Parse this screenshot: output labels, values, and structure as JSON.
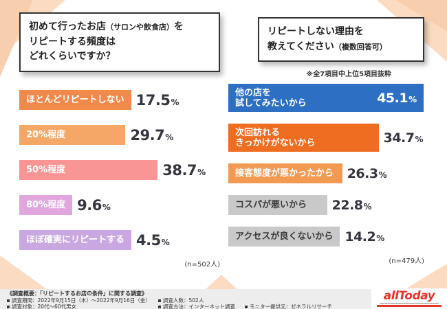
{
  "header_left": {
    "line1_main": "初めて行ったお店",
    "line1_small": "（サロンや飲食店）",
    "line1_tail": "を",
    "line2": "リピートする頻度は",
    "line3": "どれくらいですか？"
  },
  "header_right": {
    "line1": "リピートしない理由を",
    "line2_main": "教えてください",
    "line2_small": "（複数回答可）"
  },
  "chart_data": [
    {
      "type": "bar",
      "orientation": "horizontal",
      "title": "初めて行ったお店（サロンや飲食店）をリピートする頻度はどれくらいですか？",
      "categories": [
        "ほとんどリピートしない",
        "20%程度",
        "50%程度",
        "80%程度",
        "ほぼ確実にリピートする"
      ],
      "values": [
        17.5,
        29.7,
        38.7,
        9.6,
        4.5
      ],
      "unit": "%",
      "bar_colors": [
        "#ef8a4c",
        "#f5a768",
        "#fa9595",
        "#e2a6de",
        "#c9a8e2"
      ],
      "label_colors": [
        "#ffffff",
        "#ffffff",
        "#ffffff",
        "#ffffff",
        "#ffffff"
      ],
      "value_inside": [
        false,
        false,
        false,
        false,
        false
      ],
      "n_label": "(n=502人)"
    },
    {
      "type": "bar",
      "orientation": "horizontal",
      "title": "リピートしない理由を教えてください（複数回答可）",
      "note": "※全7項目中上位5項目抜粋",
      "categories": [
        "他の店を\n試してみたいから",
        "次回訪れる\nきっかけがないから",
        "接客態度が悪かったから",
        "コスパが悪いから",
        "アクセスが良くないから"
      ],
      "values": [
        45.1,
        34.7,
        26.3,
        22.8,
        14.2
      ],
      "unit": "%",
      "bar_colors": [
        "#2d6fc2",
        "#ee6d20",
        "#f29a52",
        "#c9c9c9",
        "#c9c9c9"
      ],
      "label_colors": [
        "#ffffff",
        "#ffffff",
        "#ffffff",
        "#3a3a3a",
        "#3a3a3a"
      ],
      "value_inside": [
        true,
        false,
        false,
        false,
        false
      ],
      "value_inside_color": "#ffffff",
      "n_label": "(n=479人)"
    }
  ],
  "colors": {
    "value_text": "#35353f",
    "accent_peach": "#fbdcc3",
    "logo_red": "#e5352b",
    "footer_bg": "#ededed"
  },
  "footer": {
    "title": "《調査概要：「リピートするお店の条件」に関する調査》",
    "rows": [
      [
        "調査期間：2022年9月15日（木）〜2022年9月16日（金）",
        "調査人数：502人"
      ],
      [
        "調査対象：20代〜60代男女",
        "調査方法：インターネット調査",
        "モニター提供元：ゼネラルリサーチ"
      ]
    ]
  },
  "logo": {
    "text": "allToday",
    "color": "#e5352b"
  }
}
